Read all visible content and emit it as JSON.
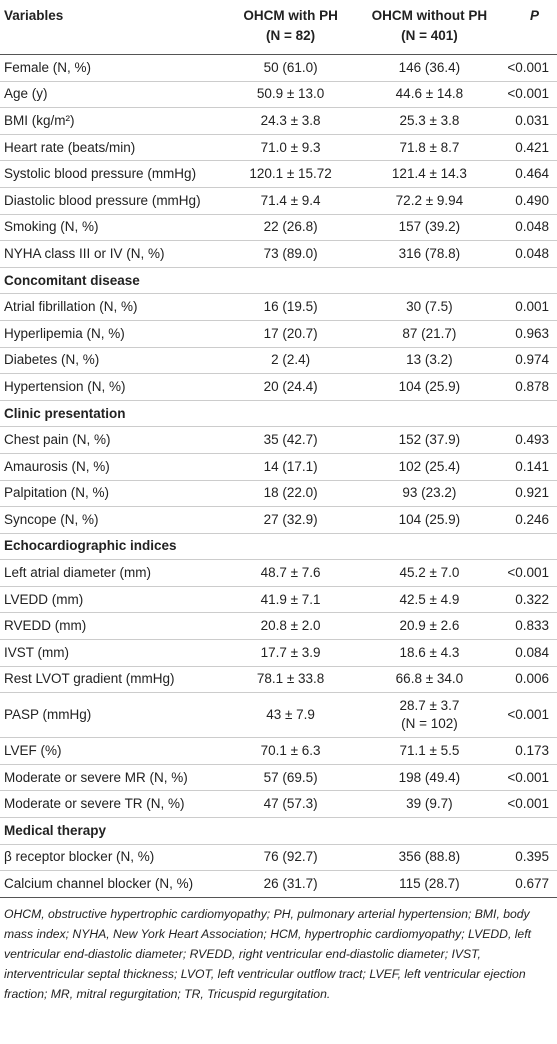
{
  "header": {
    "variables": "Variables",
    "group1": [
      "OHCM with PH",
      "(N = 82)"
    ],
    "group2": [
      "OHCM without PH",
      "(N = 401)"
    ],
    "p": "P"
  },
  "rows": [
    {
      "cells": [
        "Female (N, %)",
        "50 (61.0)",
        "146 (36.4)",
        "<0.001"
      ]
    },
    {
      "cells": [
        "Age (y)",
        "50.9 ± 13.0",
        "44.6 ± 14.8",
        "<0.001"
      ]
    },
    {
      "cells": [
        "BMI (kg/m²)",
        "24.3 ± 3.8",
        "25.3 ± 3.8",
        "0.031"
      ]
    },
    {
      "cells": [
        "Heart rate (beats/min)",
        "71.0 ± 9.3",
        "71.8 ± 8.7",
        "0.421"
      ]
    },
    {
      "cells": [
        "Systolic blood pressure (mmHg)",
        "120.1 ± 15.72",
        "121.4 ± 14.3",
        "0.464"
      ]
    },
    {
      "cells": [
        "Diastolic blood pressure (mmHg)",
        "71.4 ± 9.4",
        "72.2 ± 9.94",
        "0.490"
      ]
    },
    {
      "cells": [
        "Smoking (N, %)",
        "22 (26.8)",
        "157 (39.2)",
        "0.048"
      ]
    },
    {
      "cells": [
        "NYHA class III or IV (N, %)",
        "73 (89.0)",
        "316 (78.8)",
        "0.048"
      ]
    },
    {
      "section": "Concomitant disease"
    },
    {
      "cells": [
        "Atrial fibrillation (N, %)",
        "16 (19.5)",
        "30 (7.5)",
        "0.001"
      ]
    },
    {
      "cells": [
        "Hyperlipemia (N, %)",
        "17 (20.7)",
        "87 (21.7)",
        "0.963"
      ]
    },
    {
      "cells": [
        "Diabetes (N, %)",
        "2 (2.4)",
        "13 (3.2)",
        "0.974"
      ]
    },
    {
      "cells": [
        "Hypertension (N, %)",
        "20 (24.4)",
        "104 (25.9)",
        "0.878"
      ]
    },
    {
      "section": "Clinic presentation"
    },
    {
      "cells": [
        "Chest pain (N, %)",
        "35 (42.7)",
        "152 (37.9)",
        "0.493"
      ]
    },
    {
      "cells": [
        "Amaurosis (N, %)",
        "14 (17.1)",
        "102 (25.4)",
        "0.141"
      ]
    },
    {
      "cells": [
        "Palpitation (N, %)",
        "18 (22.0)",
        "93 (23.2)",
        "0.921"
      ]
    },
    {
      "cells": [
        "Syncope (N, %)",
        "27 (32.9)",
        "104 (25.9)",
        "0.246"
      ]
    },
    {
      "section": "Echocardiographic indices"
    },
    {
      "cells": [
        "Left atrial diameter (mm)",
        "48.7 ± 7.6",
        "45.2 ± 7.0",
        "<0.001"
      ]
    },
    {
      "cells": [
        "LVEDD (mm)",
        "41.9 ± 7.1",
        "42.5 ± 4.9",
        "0.322"
      ]
    },
    {
      "cells": [
        "RVEDD (mm)",
        "20.8 ± 2.0",
        "20.9 ± 2.6",
        "0.833"
      ]
    },
    {
      "cells": [
        "IVST (mm)",
        "17.7 ± 3.9",
        "18.6 ± 4.3",
        "0.084"
      ]
    },
    {
      "cells": [
        "Rest LVOT gradient (mmHg)",
        "78.1 ± 33.8",
        "66.8 ± 34.0",
        "0.006"
      ]
    },
    {
      "cells": [
        "PASP (mmHg)",
        "43 ± 7.9",
        [
          "28.7 ± 3.7",
          "(N = 102)"
        ],
        "<0.001"
      ]
    },
    {
      "cells": [
        "LVEF (%)",
        "70.1 ± 6.3",
        "71.1 ± 5.5",
        "0.173"
      ]
    },
    {
      "cells": [
        "Moderate or severe MR (N, %)",
        "57 (69.5)",
        "198 (49.4)",
        "<0.001"
      ]
    },
    {
      "cells": [
        "Moderate or severe TR (N, %)",
        "47 (57.3)",
        "39 (9.7)",
        "<0.001"
      ]
    },
    {
      "section": "Medical therapy"
    },
    {
      "cells": [
        "β receptor blocker (N, %)",
        "76 (92.7)",
        "356 (88.8)",
        "0.395"
      ]
    },
    {
      "cells": [
        "Calcium channel blocker (N, %)",
        "26 (31.7)",
        "115 (28.7)",
        "0.677"
      ]
    }
  ],
  "footnote": "OHCM, obstructive hypertrophic cardiomyopathy; PH, pulmonary arterial hypertension; BMI, body mass index; NYHA, New York Heart Association; HCM, hypertrophic cardiomyopathy; LVEDD, left ventricular end-diastolic diameter; RVEDD, right ventricular end-diastolic diameter; IVST, interventricular septal thickness; LVOT, left ventricular outflow tract; LVEF, left ventricular ejection fraction; MR, mitral regurgitation; TR, Tricuspid regurgitation."
}
